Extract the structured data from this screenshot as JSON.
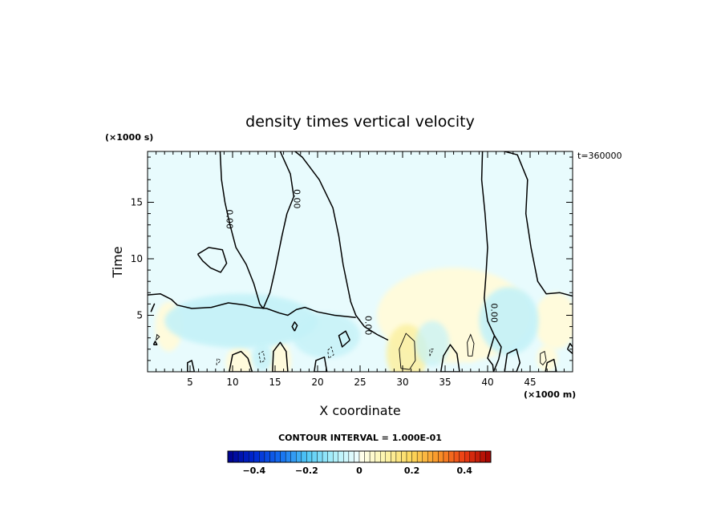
{
  "chart_data": {
    "type": "contour",
    "title": "density times vertical velocity",
    "xlabel": "X coordinate",
    "ylabel": "Time",
    "x_unit": "(×1000 m)",
    "y_unit": "(×1000 s)",
    "time_label": "t=360000",
    "xlim": [
      0,
      50
    ],
    "ylim": [
      0,
      19.5
    ],
    "x_ticks": [
      5,
      10,
      15,
      20,
      25,
      30,
      35,
      40,
      45
    ],
    "x_tick_labels": [
      "5",
      "10",
      "15",
      "20",
      "25",
      "30",
      "35",
      "40",
      "45"
    ],
    "y_ticks": [
      5,
      10,
      15
    ],
    "y_tick_labels": [
      "5",
      "10",
      "15"
    ],
    "contour_interval_text": "CONTOUR INTERVAL = 1.000E-01",
    "zero_contour_label": "0.00",
    "colorbar": {
      "min": -0.5,
      "max": 0.5,
      "ticks": [
        -0.4,
        -0.2,
        0,
        0.2,
        0.4
      ],
      "tick_labels": [
        "−0.4",
        "−0.2",
        "0",
        "0.2",
        "0.4"
      ]
    },
    "colors": {
      "negative_weak": "#e8fbfd",
      "negative_mid": "#c4f2f8",
      "positive_weak": "#fffbdc",
      "positive_mid": "#fbf1a6"
    },
    "zero_contours": [
      [
        [
          0,
          6.8
        ],
        [
          1.5,
          6.9
        ],
        [
          2.8,
          6.4
        ],
        [
          3.5,
          5.9
        ],
        [
          5.2,
          5.6
        ],
        [
          7.5,
          5.7
        ],
        [
          9.5,
          6.1
        ],
        [
          11.5,
          5.9
        ],
        [
          12.5,
          5.7
        ],
        [
          14,
          5.6
        ],
        [
          15.5,
          5.2
        ],
        [
          16.5,
          5.0
        ],
        [
          17.5,
          5.5
        ],
        [
          18.5,
          5.7
        ],
        [
          20,
          5.3
        ],
        [
          22,
          5.0
        ],
        [
          24.5,
          4.8
        ]
      ],
      [
        [
          8.5,
          20
        ],
        [
          8.7,
          17.0
        ],
        [
          9.1,
          15.0
        ],
        [
          9.7,
          13.0
        ],
        [
          10.4,
          11.0
        ],
        [
          11.6,
          9.5
        ],
        [
          12.5,
          7.8
        ],
        [
          13.2,
          6.0
        ],
        [
          13.6,
          5.6
        ],
        [
          14.4,
          7.0
        ],
        [
          15.0,
          9.0
        ],
        [
          15.8,
          12.0
        ],
        [
          16.4,
          14.0
        ],
        [
          17.2,
          15.5
        ],
        [
          16.8,
          17.5
        ],
        [
          15.6,
          19.5
        ]
      ],
      [
        [
          15.6,
          19.5
        ],
        [
          16.5,
          20
        ],
        [
          18.2,
          19.0
        ],
        [
          20.2,
          17.0
        ],
        [
          21.8,
          14.5
        ],
        [
          22.5,
          12.0
        ],
        [
          23.0,
          9.5
        ],
        [
          23.9,
          6.2
        ],
        [
          24.5,
          5.0
        ],
        [
          25.5,
          4.0
        ],
        [
          27.0,
          3.3
        ],
        [
          28.3,
          2.8
        ]
      ],
      [
        [
          40,
          20
        ],
        [
          39.4,
          19.5
        ],
        [
          39.3,
          17.0
        ],
        [
          39.7,
          14.0
        ],
        [
          40.0,
          11.0
        ],
        [
          39.8,
          8.5
        ],
        [
          39.6,
          6.5
        ],
        [
          40.0,
          4.5
        ],
        [
          40.8,
          3.2
        ]
      ],
      [
        [
          40,
          20
        ],
        [
          41.5,
          19.6
        ],
        [
          43.5,
          19.2
        ],
        [
          44.7,
          17.0
        ],
        [
          44.5,
          14.0
        ],
        [
          45.1,
          11.0
        ],
        [
          45.9,
          8.0
        ],
        [
          46.9,
          6.9
        ],
        [
          48.5,
          7.0
        ],
        [
          50,
          6.7
        ]
      ],
      [
        [
          5.9,
          10.4
        ],
        [
          7.2,
          11.0
        ],
        [
          8.8,
          10.8
        ],
        [
          9.3,
          9.6
        ],
        [
          8.6,
          8.8
        ],
        [
          7.4,
          9.2
        ],
        [
          6.5,
          9.8
        ],
        [
          5.9,
          10.4
        ]
      ],
      [
        [
          0.4,
          5.3
        ],
        [
          0.8,
          6.0
        ],
        [
          0.5,
          5.5
        ],
        [
          0.4,
          5.3
        ]
      ],
      [
        [
          17.3,
          3.6
        ],
        [
          17.6,
          4.1
        ],
        [
          17.3,
          4.4
        ],
        [
          17.0,
          4.0
        ],
        [
          17.3,
          3.6
        ]
      ],
      [
        [
          4.7,
          0
        ],
        [
          4.7,
          0.8
        ],
        [
          5.2,
          1.0
        ],
        [
          5.5,
          0
        ],
        [
          4.7,
          0
        ]
      ],
      [
        [
          9.6,
          0
        ],
        [
          10.0,
          1.5
        ],
        [
          11.0,
          1.8
        ],
        [
          11.8,
          1.2
        ],
        [
          12.3,
          0
        ],
        [
          9.6,
          0
        ]
      ],
      [
        [
          14.7,
          0
        ],
        [
          14.8,
          1.8
        ],
        [
          15.6,
          2.6
        ],
        [
          16.3,
          1.8
        ],
        [
          16.5,
          0
        ],
        [
          14.7,
          0
        ]
      ],
      [
        [
          19.6,
          0
        ],
        [
          19.8,
          1.0
        ],
        [
          20.8,
          1.3
        ],
        [
          21.1,
          0
        ],
        [
          19.6,
          0
        ]
      ],
      [
        [
          23.8,
          2.8
        ],
        [
          22.9,
          2.2
        ],
        [
          22.5,
          3.2
        ],
        [
          23.3,
          3.6
        ],
        [
          23.8,
          2.8
        ]
      ],
      [
        [
          34.5,
          0
        ],
        [
          34.8,
          1.4
        ],
        [
          35.6,
          2.4
        ],
        [
          36.4,
          1.6
        ],
        [
          36.7,
          0
        ],
        [
          34.5,
          0
        ]
      ],
      [
        [
          40.8,
          3.2
        ],
        [
          41.6,
          2.2
        ],
        [
          41.3,
          1.1
        ],
        [
          40.7,
          0
        ],
        [
          40.6,
          0.6
        ],
        [
          40.0,
          1.2
        ],
        [
          40.8,
          3.2
        ]
      ],
      [
        [
          42.0,
          0
        ],
        [
          42.3,
          1.6
        ],
        [
          43.4,
          2.0
        ],
        [
          43.8,
          0.8
        ],
        [
          43.4,
          0
        ],
        [
          42.0,
          0
        ]
      ],
      [
        [
          46.8,
          0
        ],
        [
          47.0,
          0.8
        ],
        [
          47.8,
          1.1
        ],
        [
          48.1,
          0
        ],
        [
          46.8,
          0
        ]
      ],
      [
        [
          49.4,
          2.0
        ],
        [
          49.7,
          2.5
        ],
        [
          50,
          2.2
        ],
        [
          50,
          1.6
        ],
        [
          49.4,
          2.0
        ]
      ],
      [
        [
          0.7,
          2.4
        ],
        [
          0.9,
          2.7
        ],
        [
          1.1,
          2.4
        ],
        [
          0.7,
          2.4
        ]
      ]
    ],
    "positive_contours": [
      [
        [
          29.8,
          0.3
        ],
        [
          29.6,
          2.0
        ],
        [
          30.4,
          3.4
        ],
        [
          31.4,
          2.7
        ],
        [
          31.5,
          1.0
        ],
        [
          30.8,
          0.2
        ],
        [
          29.8,
          0.3
        ]
      ],
      [
        [
          37.7,
          1.4
        ],
        [
          37.6,
          2.6
        ],
        [
          38.0,
          3.3
        ],
        [
          38.4,
          2.5
        ],
        [
          38.2,
          1.4
        ],
        [
          37.7,
          1.4
        ]
      ],
      [
        [
          46.2,
          0.8
        ],
        [
          46.2,
          1.6
        ],
        [
          46.7,
          1.8
        ],
        [
          46.9,
          1.0
        ],
        [
          46.5,
          0.6
        ],
        [
          46.2,
          0.8
        ]
      ],
      [
        [
          1.0,
          2.8
        ],
        [
          1.1,
          3.3
        ],
        [
          1.4,
          3.1
        ],
        [
          1.0,
          2.8
        ]
      ]
    ],
    "negative_contours": [
      [
        [
          13.3,
          0.8
        ],
        [
          13.1,
          1.6
        ],
        [
          13.6,
          1.8
        ],
        [
          13.8,
          1.0
        ],
        [
          13.3,
          0.8
        ]
      ],
      [
        [
          8.1,
          0.6
        ],
        [
          8.2,
          1.2
        ],
        [
          8.6,
          1.0
        ],
        [
          8.1,
          0.6
        ]
      ],
      [
        [
          21.3,
          1.2
        ],
        [
          21.2,
          1.9
        ],
        [
          21.6,
          2.2
        ],
        [
          21.9,
          1.5
        ],
        [
          21.3,
          1.2
        ]
      ],
      [
        [
          33.2,
          1.4
        ],
        [
          33.2,
          2.0
        ],
        [
          33.6,
          2.0
        ],
        [
          33.2,
          1.4
        ]
      ]
    ],
    "zero_labels": [
      {
        "x": 9.3,
        "y": 13.5
      },
      {
        "x": 17.2,
        "y": 15.3
      },
      {
        "x": 25.6,
        "y": 4.1
      },
      {
        "x": 40.4,
        "y": 5.2
      }
    ]
  }
}
